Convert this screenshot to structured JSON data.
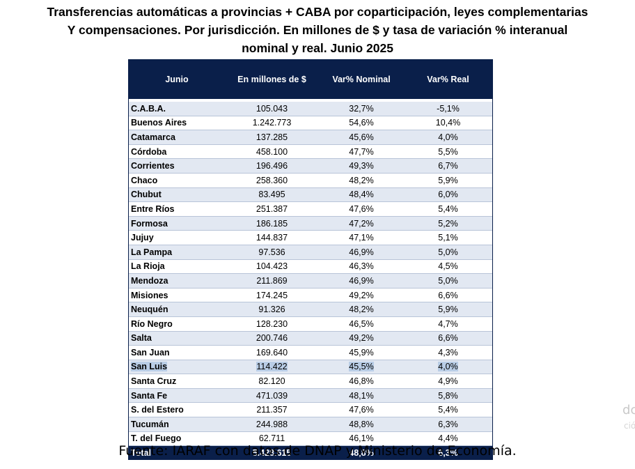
{
  "title": {
    "line1": "Transferencias automáticas a provincias + CABA por coparticipación, leyes complementarias",
    "line2": "Y compensaciones. Por jurisdicción. En millones de $ y tasa de variación % interanual",
    "line3": "nominal y real. Junio 2025"
  },
  "table": {
    "headers": [
      "Junio",
      "En millones de $",
      "Var% Nominal",
      "Var% Real"
    ],
    "rows": [
      {
        "name": "C.A.B.A.",
        "millones": "105.043",
        "nominal": "32,7%",
        "real": "-5,1%"
      },
      {
        "name": "Buenos Aires",
        "millones": "1.242.773",
        "nominal": "54,6%",
        "real": "10,4%"
      },
      {
        "name": "Catamarca",
        "millones": "137.285",
        "nominal": "45,6%",
        "real": "4,0%"
      },
      {
        "name": "Córdoba",
        "millones": "458.100",
        "nominal": "47,7%",
        "real": "5,5%"
      },
      {
        "name": "Corrientes",
        "millones": "196.496",
        "nominal": "49,3%",
        "real": "6,7%"
      },
      {
        "name": "Chaco",
        "millones": "258.360",
        "nominal": "48,2%",
        "real": "5,9%"
      },
      {
        "name": "Chubut",
        "millones": "83.495",
        "nominal": "48,4%",
        "real": "6,0%"
      },
      {
        "name": "Entre Ríos",
        "millones": "251.387",
        "nominal": "47,6%",
        "real": "5,4%"
      },
      {
        "name": "Formosa",
        "millones": "186.185",
        "nominal": "47,2%",
        "real": "5,2%"
      },
      {
        "name": "Jujuy",
        "millones": "144.837",
        "nominal": "47,1%",
        "real": "5,1%"
      },
      {
        "name": "La Pampa",
        "millones": "97.536",
        "nominal": "46,9%",
        "real": "5,0%"
      },
      {
        "name": "La Rioja",
        "millones": "104.423",
        "nominal": "46,3%",
        "real": "4,5%"
      },
      {
        "name": "Mendoza",
        "millones": "211.869",
        "nominal": "46,9%",
        "real": "5,0%"
      },
      {
        "name": "Misiones",
        "millones": "174.245",
        "nominal": "49,2%",
        "real": "6,6%"
      },
      {
        "name": "Neuquén",
        "millones": "91.326",
        "nominal": "48,2%",
        "real": "5,9%"
      },
      {
        "name": "Río Negro",
        "millones": "128.230",
        "nominal": "46,5%",
        "real": "4,7%"
      },
      {
        "name": "Salta",
        "millones": "200.746",
        "nominal": "49,2%",
        "real": "6,6%"
      },
      {
        "name": "San Juan",
        "millones": "169.640",
        "nominal": "45,9%",
        "real": "4,3%"
      },
      {
        "name": "San Luis",
        "millones": "114.422",
        "nominal": "45,5%",
        "real": "4,0%"
      },
      {
        "name": "Santa Cruz",
        "millones": "82.120",
        "nominal": "46,8%",
        "real": "4,9%"
      },
      {
        "name": "Santa Fe",
        "millones": "471.039",
        "nominal": "48,1%",
        "real": "5,8%"
      },
      {
        "name": "S. del Estero",
        "millones": "211.357",
        "nominal": "47,6%",
        "real": "5,4%"
      },
      {
        "name": "Tucumán",
        "millones": "244.988",
        "nominal": "48,8%",
        "real": "6,3%"
      },
      {
        "name": "T. del Fuego",
        "millones": "62.711",
        "nominal": "46,1%",
        "real": "4,4%"
      }
    ],
    "total": {
      "name": "Total",
      "millones": "5.428.615",
      "nominal": "48,8%",
      "real": "6,3%"
    }
  },
  "source": "Fuente: IARAF con datos de DNAP y Ministerio de Economía.",
  "ghost_text": {
    "a": "dc",
    "b": "ció"
  },
  "colors": {
    "header_bg": "#0a1f4a",
    "row_alt": "#e2e8f2",
    "selection": "#b9cde6"
  }
}
